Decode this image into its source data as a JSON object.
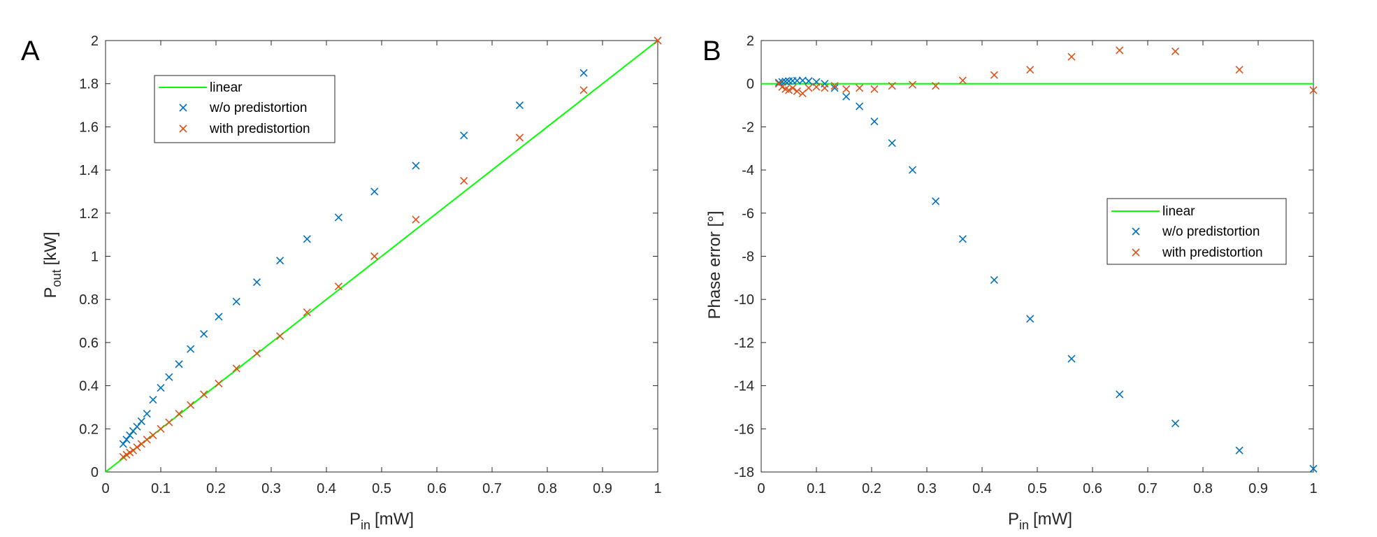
{
  "figure": {
    "panels": [
      "A",
      "B"
    ]
  },
  "chart_data": [
    {
      "type": "scatter",
      "panel_label": "A",
      "xlabel": {
        "main": "P",
        "sub": "in",
        "unit": "[mW]"
      },
      "ylabel": {
        "main": "P",
        "sub": "out",
        "unit": "[kW]"
      },
      "xlim": [
        0,
        1
      ],
      "ylim": [
        0,
        2
      ],
      "xticks": [
        0,
        0.1,
        0.2,
        0.3,
        0.4,
        0.5,
        0.6,
        0.7,
        0.8,
        0.9,
        1
      ],
      "xtick_labels": [
        "0",
        "0.1",
        "0.2",
        "0.3",
        "0.4",
        "0.5",
        "0.6",
        "0.7",
        "0.8",
        "0.9",
        "1"
      ],
      "yticks": [
        0,
        0.2,
        0.4,
        0.6,
        0.8,
        1,
        1.2,
        1.4,
        1.6,
        1.8,
        2
      ],
      "ytick_labels": [
        "0",
        "0.2",
        "0.4",
        "0.6",
        "0.8",
        "1",
        "1.2",
        "1.4",
        "1.6",
        "1.8",
        "2"
      ],
      "grid": false,
      "legend_position": "top-left",
      "series": [
        {
          "name": "linear",
          "kind": "line",
          "color": "#00ff00",
          "x": [
            0,
            1
          ],
          "y": [
            0,
            2
          ]
        },
        {
          "name": "w/o predistortion",
          "kind": "marker",
          "color": "#0072bd",
          "x": [
            0.032,
            0.038,
            0.044,
            0.05,
            0.057,
            0.065,
            0.075,
            0.086,
            0.1,
            0.115,
            0.133,
            0.154,
            0.178,
            0.205,
            0.237,
            0.274,
            0.316,
            0.365,
            0.422,
            0.487,
            0.562,
            0.649,
            0.75,
            0.866
          ],
          "y": [
            0.13,
            0.15,
            0.17,
            0.19,
            0.21,
            0.235,
            0.27,
            0.335,
            0.39,
            0.44,
            0.5,
            0.57,
            0.64,
            0.72,
            0.79,
            0.88,
            0.98,
            1.08,
            1.18,
            1.3,
            1.42,
            1.56,
            1.7,
            1.85
          ]
        },
        {
          "name": "with predistortion",
          "kind": "marker",
          "color": "#d95319",
          "x": [
            0.032,
            0.038,
            0.044,
            0.05,
            0.057,
            0.065,
            0.075,
            0.086,
            0.1,
            0.115,
            0.133,
            0.154,
            0.178,
            0.205,
            0.237,
            0.274,
            0.316,
            0.365,
            0.422,
            0.487,
            0.562,
            0.649,
            0.75,
            0.866,
            1.0
          ],
          "y": [
            0.07,
            0.08,
            0.09,
            0.1,
            0.115,
            0.13,
            0.15,
            0.17,
            0.2,
            0.23,
            0.27,
            0.31,
            0.36,
            0.41,
            0.48,
            0.55,
            0.63,
            0.74,
            0.86,
            1.0,
            1.17,
            1.35,
            1.55,
            1.77,
            2.0
          ]
        }
      ]
    },
    {
      "type": "scatter",
      "panel_label": "B",
      "xlabel": {
        "main": "P",
        "sub": "in",
        "unit": "[mW]"
      },
      "ylabel": {
        "main": "Phase error [°]",
        "sub": "",
        "unit": ""
      },
      "xlim": [
        0,
        1
      ],
      "ylim": [
        -18,
        2
      ],
      "xticks": [
        0,
        0.1,
        0.2,
        0.3,
        0.4,
        0.5,
        0.6,
        0.7,
        0.8,
        0.9,
        1
      ],
      "xtick_labels": [
        "0",
        "0.1",
        "0.2",
        "0.3",
        "0.4",
        "0.5",
        "0.6",
        "0.7",
        "0.8",
        "0.9",
        "1"
      ],
      "yticks": [
        -18,
        -16,
        -14,
        -12,
        -10,
        -8,
        -6,
        -4,
        -2,
        0,
        2
      ],
      "ytick_labels": [
        "-18",
        "-16",
        "-14",
        "-12",
        "-10",
        "-8",
        "-6",
        "-4",
        "-2",
        "0",
        "2"
      ],
      "grid": false,
      "legend_position": "middle-right",
      "series": [
        {
          "name": "linear",
          "kind": "line",
          "color": "#00ff00",
          "x": [
            0,
            1
          ],
          "y": [
            0,
            0
          ]
        },
        {
          "name": "w/o predistortion",
          "kind": "marker",
          "color": "#0072bd",
          "x": [
            0.032,
            0.038,
            0.044,
            0.05,
            0.057,
            0.065,
            0.075,
            0.086,
            0.1,
            0.115,
            0.133,
            0.154,
            0.178,
            0.205,
            0.237,
            0.274,
            0.316,
            0.365,
            0.422,
            0.487,
            0.562,
            0.649,
            0.75,
            0.866,
            1.0
          ],
          "y": [
            0.05,
            0.08,
            0.1,
            0.12,
            0.13,
            0.14,
            0.15,
            0.12,
            0.08,
            0.0,
            -0.2,
            -0.6,
            -1.05,
            -1.75,
            -2.75,
            -4.0,
            -5.45,
            -7.2,
            -9.1,
            -10.9,
            -12.75,
            -14.4,
            -15.75,
            -17.0,
            -17.85
          ]
        },
        {
          "name": "with predistortion",
          "kind": "marker",
          "color": "#d95319",
          "x": [
            0.032,
            0.038,
            0.044,
            0.05,
            0.057,
            0.065,
            0.075,
            0.086,
            0.1,
            0.115,
            0.133,
            0.154,
            0.178,
            0.205,
            0.237,
            0.274,
            0.316,
            0.365,
            0.422,
            0.487,
            0.562,
            0.649,
            0.75,
            0.866,
            1.0
          ],
          "y": [
            0.0,
            -0.15,
            -0.25,
            -0.3,
            -0.2,
            -0.35,
            -0.45,
            -0.2,
            -0.15,
            -0.2,
            -0.1,
            -0.25,
            -0.2,
            -0.25,
            -0.1,
            -0.05,
            -0.1,
            0.15,
            0.4,
            0.65,
            1.25,
            1.55,
            1.5,
            0.65,
            -0.3
          ]
        }
      ]
    }
  ]
}
